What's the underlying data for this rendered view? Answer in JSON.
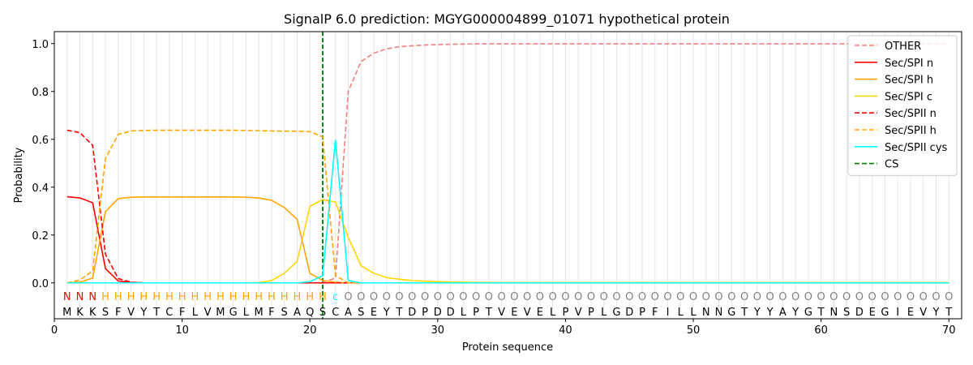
{
  "chart_data": {
    "type": "line",
    "title": "SignalP 6.0 prediction: MGYG000004899_01071 hypothetical protein",
    "xlabel": "Protein sequence",
    "ylabel": "Probability",
    "xlim": [
      0,
      71
    ],
    "ylim": [
      -0.15,
      1.05
    ],
    "x_ticks": [
      0,
      10,
      20,
      30,
      40,
      50,
      60,
      70
    ],
    "y_ticks": [
      0.0,
      0.2,
      0.4,
      0.6,
      0.8,
      1.0
    ],
    "x_tick_labels": [
      "0",
      "10",
      "20",
      "30",
      "40",
      "50",
      "60",
      "70"
    ],
    "y_tick_labels": [
      "0.0",
      "0.2",
      "0.4",
      "0.6",
      "0.8",
      "1.0"
    ],
    "grid": "vertical lines at each residue",
    "legend_position": "top-right",
    "sequence": [
      "M",
      "K",
      "K",
      "S",
      "F",
      "V",
      "Y",
      "T",
      "C",
      "F",
      "L",
      "V",
      "M",
      "G",
      "L",
      "M",
      "F",
      "S",
      "A",
      "Q",
      "S",
      "C",
      "A",
      "S",
      "E",
      "Y",
      "T",
      "D",
      "P",
      "D",
      "D",
      "L",
      "P",
      "T",
      "V",
      "E",
      "V",
      "E",
      "L",
      "P",
      "V",
      "P",
      "L",
      "G",
      "D",
      "P",
      "F",
      "I",
      "L",
      "L",
      "N",
      "N",
      "G",
      "T",
      "Y",
      "Y",
      "A",
      "Y",
      "G",
      "T",
      "N",
      "S",
      "D",
      "E",
      "G",
      "I",
      "E",
      "V",
      "Y",
      "T"
    ],
    "region_labels": [
      "N",
      "N",
      "N",
      "H",
      "H",
      "H",
      "H",
      "H",
      "H",
      "H",
      "H",
      "H",
      "H",
      "H",
      "H",
      "H",
      "H",
      "H",
      "H",
      "H",
      "H",
      "c",
      "O",
      "O",
      "O",
      "O",
      "O",
      "O",
      "O",
      "O",
      "O",
      "O",
      "O",
      "O",
      "O",
      "O",
      "O",
      "O",
      "O",
      "O",
      "O",
      "O",
      "O",
      "O",
      "O",
      "O",
      "O",
      "O",
      "O",
      "O",
      "O",
      "O",
      "O",
      "O",
      "O",
      "O",
      "O",
      "O",
      "O",
      "O",
      "O",
      "O",
      "O",
      "O",
      "O",
      "O",
      "O",
      "O",
      "O",
      "O"
    ],
    "region_colors": {
      "N": "#ff0000",
      "H": "#ffa500",
      "c": "#00ffff",
      "O": "#808080"
    },
    "cs_position": 21,
    "series": [
      {
        "name": "OTHER",
        "color": "#f08080",
        "dash": "dashed",
        "values": [
          0.0,
          0.0,
          0.0,
          0.0,
          0.0,
          0.0,
          0.0,
          0.0,
          0.0,
          0.0,
          0.0,
          0.0,
          0.0,
          0.0,
          0.0,
          0.0,
          0.0,
          0.0,
          0.0,
          0.0,
          0.002,
          0.02,
          0.8,
          0.925,
          0.96,
          0.978,
          0.987,
          0.991,
          0.994,
          0.996,
          0.997,
          0.998,
          0.999,
          0.999,
          0.999,
          0.999,
          0.999,
          0.999,
          0.999,
          0.999,
          0.999,
          0.999,
          0.999,
          0.999,
          0.999,
          0.999,
          0.999,
          0.999,
          0.999,
          0.999,
          0.999,
          0.999,
          0.999,
          0.999,
          0.999,
          0.999,
          0.999,
          0.999,
          0.999,
          0.999,
          0.999,
          0.999,
          0.999,
          0.999,
          0.999,
          0.999,
          0.999,
          0.999,
          0.999,
          0.999
        ]
      },
      {
        "name": "Sec/SPI n",
        "color": "#ff0000",
        "dash": "solid",
        "values": [
          0.36,
          0.355,
          0.335,
          0.06,
          0.008,
          0.002,
          0.0,
          0.0,
          0.0,
          0.0,
          0.0,
          0.0,
          0.0,
          0.0,
          0.0,
          0.0,
          0.0,
          0.0,
          0.0,
          0.0,
          0.0,
          0.0,
          0.0,
          0.0,
          0.0,
          0.0,
          0.0,
          0.0,
          0.0,
          0.0,
          0.0,
          0.0,
          0.0,
          0.0,
          0.0,
          0.0,
          0.0,
          0.0,
          0.0,
          0.0,
          0.0,
          0.0,
          0.0,
          0.0,
          0.0,
          0.0,
          0.0,
          0.0,
          0.0,
          0.0,
          0.0,
          0.0,
          0.0,
          0.0,
          0.0,
          0.0,
          0.0,
          0.0,
          0.0,
          0.0,
          0.0,
          0.0,
          0.0,
          0.0,
          0.0,
          0.0,
          0.0,
          0.0,
          0.0,
          0.0
        ]
      },
      {
        "name": "Sec/SPI h",
        "color": "#ffa500",
        "dash": "solid",
        "values": [
          0.0,
          0.003,
          0.02,
          0.298,
          0.352,
          0.358,
          0.359,
          0.359,
          0.359,
          0.359,
          0.359,
          0.359,
          0.359,
          0.359,
          0.358,
          0.355,
          0.345,
          0.315,
          0.265,
          0.04,
          0.01,
          0.003,
          0.0,
          0.0,
          0.0,
          0.0,
          0.0,
          0.0,
          0.0,
          0.0,
          0.0,
          0.0,
          0.0,
          0.0,
          0.0,
          0.0,
          0.0,
          0.0,
          0.0,
          0.0,
          0.0,
          0.0,
          0.0,
          0.0,
          0.0,
          0.0,
          0.0,
          0.0,
          0.0,
          0.0,
          0.0,
          0.0,
          0.0,
          0.0,
          0.0,
          0.0,
          0.0,
          0.0,
          0.0,
          0.0,
          0.0,
          0.0,
          0.0,
          0.0,
          0.0,
          0.0,
          0.0,
          0.0,
          0.0,
          0.0
        ]
      },
      {
        "name": "Sec/SPI c",
        "color": "#ffd700",
        "dash": "solid",
        "values": [
          0.0,
          0.0,
          0.0,
          0.0,
          0.0,
          0.0,
          0.0,
          0.0,
          0.0,
          0.0,
          0.0,
          0.0,
          0.0,
          0.0,
          0.0,
          0.001,
          0.01,
          0.04,
          0.09,
          0.32,
          0.348,
          0.338,
          0.19,
          0.072,
          0.04,
          0.022,
          0.015,
          0.01,
          0.007,
          0.005,
          0.004,
          0.003,
          0.002,
          0.002,
          0.001,
          0.001,
          0.001,
          0.001,
          0.001,
          0.001,
          0.001,
          0.001,
          0.001,
          0.001,
          0.001,
          0.001,
          0.001,
          0.001,
          0.001,
          0.001,
          0.001,
          0.001,
          0.001,
          0.001,
          0.001,
          0.001,
          0.001,
          0.001,
          0.001,
          0.001,
          0.001,
          0.001,
          0.001,
          0.001,
          0.001,
          0.001,
          0.001,
          0.001,
          0.001,
          0.001
        ]
      },
      {
        "name": "Sec/SPII n",
        "color": "#ff0000",
        "dash": "dashed",
        "values": [
          0.638,
          0.628,
          0.575,
          0.12,
          0.018,
          0.003,
          0.0,
          0.0,
          0.0,
          0.0,
          0.0,
          0.0,
          0.0,
          0.0,
          0.0,
          0.0,
          0.0,
          0.0,
          0.0,
          0.0,
          0.0,
          0.0,
          0.0,
          0.0,
          0.0,
          0.0,
          0.0,
          0.0,
          0.0,
          0.0,
          0.0,
          0.0,
          0.0,
          0.0,
          0.0,
          0.0,
          0.0,
          0.0,
          0.0,
          0.0,
          0.0,
          0.0,
          0.0,
          0.0,
          0.0,
          0.0,
          0.0,
          0.0,
          0.0,
          0.0,
          0.0,
          0.0,
          0.0,
          0.0,
          0.0,
          0.0,
          0.0,
          0.0,
          0.0,
          0.0,
          0.0,
          0.0,
          0.0,
          0.0,
          0.0,
          0.0,
          0.0,
          0.0,
          0.0,
          0.0
        ]
      },
      {
        "name": "Sec/SPII h",
        "color": "#ffa500",
        "dash": "dashed",
        "values": [
          0.0,
          0.012,
          0.05,
          0.52,
          0.62,
          0.635,
          0.637,
          0.638,
          0.638,
          0.638,
          0.638,
          0.638,
          0.638,
          0.638,
          0.637,
          0.636,
          0.635,
          0.634,
          0.634,
          0.632,
          0.61,
          0.03,
          0.0,
          0.0,
          0.0,
          0.0,
          0.0,
          0.0,
          0.0,
          0.0,
          0.0,
          0.0,
          0.0,
          0.0,
          0.0,
          0.0,
          0.0,
          0.0,
          0.0,
          0.0,
          0.0,
          0.0,
          0.0,
          0.0,
          0.0,
          0.0,
          0.0,
          0.0,
          0.0,
          0.0,
          0.0,
          0.0,
          0.0,
          0.0,
          0.0,
          0.0,
          0.0,
          0.0,
          0.0,
          0.0,
          0.0,
          0.0,
          0.0,
          0.0,
          0.0,
          0.0,
          0.0,
          0.0,
          0.0,
          0.0
        ]
      },
      {
        "name": "Sec/SPII cys",
        "color": "#00ffff",
        "dash": "solid",
        "values": [
          0.0,
          0.0,
          0.0,
          0.0,
          0.0,
          0.0,
          0.0,
          0.0,
          0.0,
          0.0,
          0.0,
          0.0,
          0.0,
          0.0,
          0.0,
          0.0,
          0.0,
          0.0,
          0.0,
          0.005,
          0.03,
          0.597,
          0.01,
          0.0,
          0.0,
          0.0,
          0.0,
          0.0,
          0.0,
          0.0,
          0.0,
          0.0,
          0.0,
          0.0,
          0.0,
          0.0,
          0.0,
          0.0,
          0.0,
          0.0,
          0.0,
          0.0,
          0.0,
          0.0,
          0.0,
          0.0,
          0.0,
          0.0,
          0.0,
          0.0,
          0.0,
          0.0,
          0.0,
          0.0,
          0.0,
          0.0,
          0.0,
          0.0,
          0.0,
          0.0,
          0.0,
          0.0,
          0.0,
          0.0,
          0.0,
          0.0,
          0.0,
          0.0,
          0.0,
          0.0
        ]
      },
      {
        "name": "CS",
        "color": "#008000",
        "dash": "dashed",
        "values": []
      }
    ]
  }
}
